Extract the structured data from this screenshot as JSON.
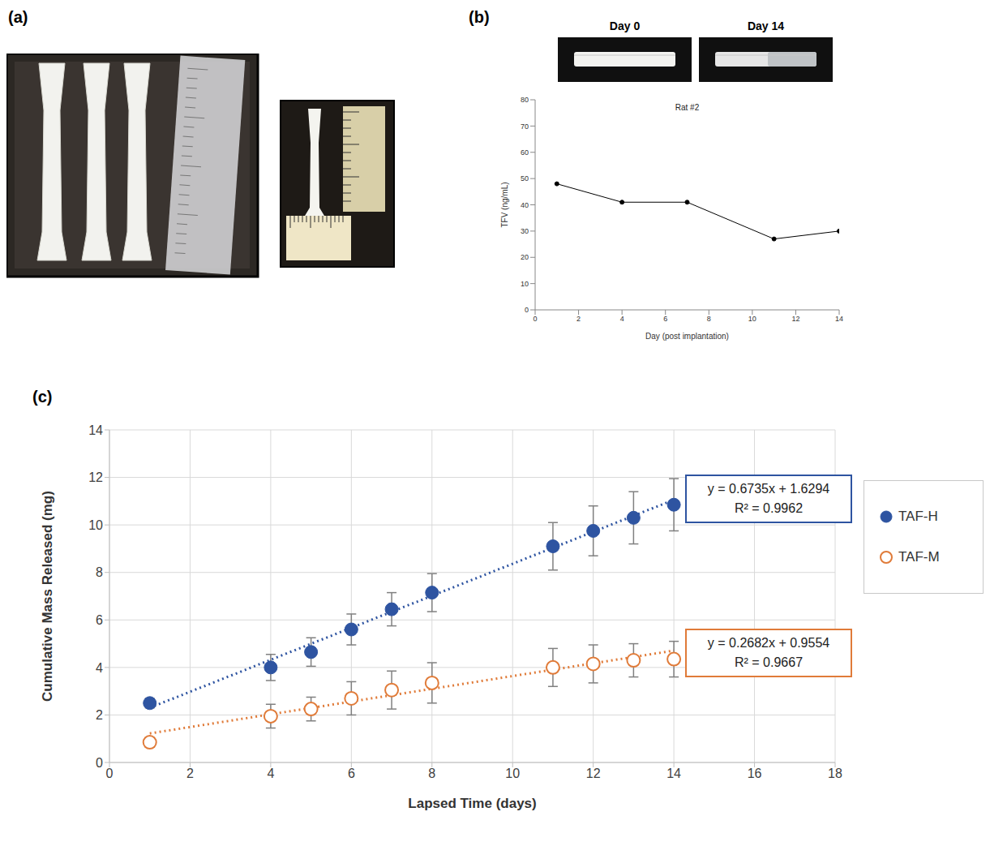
{
  "photo_panel": {
    "label": "(a)"
  },
  "chart_data": [
    {
      "panel": "(b)",
      "photo_captions": [
        "Day 0",
        "Day 14"
      ],
      "type": "line",
      "title": "Rat #2",
      "x_label": "Day (post implantation)",
      "y_label": "TFV (ng/mL)",
      "x": [
        1,
        4,
        7,
        11,
        14
      ],
      "values": [
        48,
        41,
        41,
        27,
        30
      ],
      "color": "#000000",
      "marker": "circle",
      "xlim": [
        0,
        14
      ],
      "xticks": [
        0,
        2,
        4,
        6,
        8,
        10,
        12,
        14
      ],
      "ylim": [
        0,
        80
      ],
      "yticks": [
        0,
        10,
        20,
        30,
        40,
        50,
        60,
        70,
        80
      ],
      "grid": false
    },
    {
      "panel": "(c)",
      "type": "scatter",
      "x_label": "Lapsed Time (days)",
      "y_label": "Cumulative Mass Released (mg)",
      "x": [
        1,
        4,
        5,
        6,
        7,
        8,
        11,
        12,
        13,
        14
      ],
      "series": [
        {
          "name": "TAF-H",
          "color": "#2e54a1",
          "marker": "circle",
          "values": [
            2.5,
            4.0,
            4.65,
            5.6,
            6.45,
            7.15,
            9.1,
            9.75,
            10.3,
            10.85
          ],
          "errors": [
            0.2,
            0.55,
            0.6,
            0.65,
            0.7,
            0.8,
            1.0,
            1.05,
            1.1,
            1.1
          ],
          "trendline": {
            "slope": 0.6735,
            "intercept": 1.6294,
            "equation": "y = 0.6735x + 1.6294",
            "r_squared": "R² = 0.9962",
            "line_style": "dotted"
          }
        },
        {
          "name": "TAF-M",
          "color": "#e07b39",
          "marker": "open_circle",
          "values": [
            0.85,
            1.95,
            2.25,
            2.7,
            3.05,
            3.35,
            4.0,
            4.15,
            4.3,
            4.35
          ],
          "errors": [
            0.2,
            0.5,
            0.5,
            0.7,
            0.8,
            0.85,
            0.8,
            0.8,
            0.7,
            0.75
          ],
          "trendline": {
            "slope": 0.2682,
            "intercept": 0.9554,
            "equation": "y = 0.2682x + 0.9554",
            "r_squared": "R² = 0.9667",
            "line_style": "dotted"
          }
        }
      ],
      "xlim": [
        0,
        18
      ],
      "xticks": [
        0,
        2,
        4,
        6,
        8,
        10,
        12,
        14,
        16,
        18
      ],
      "ylim": [
        0,
        14
      ],
      "yticks": [
        0,
        2,
        4,
        6,
        8,
        10,
        12,
        14
      ],
      "grid": true,
      "legend": "right"
    }
  ]
}
